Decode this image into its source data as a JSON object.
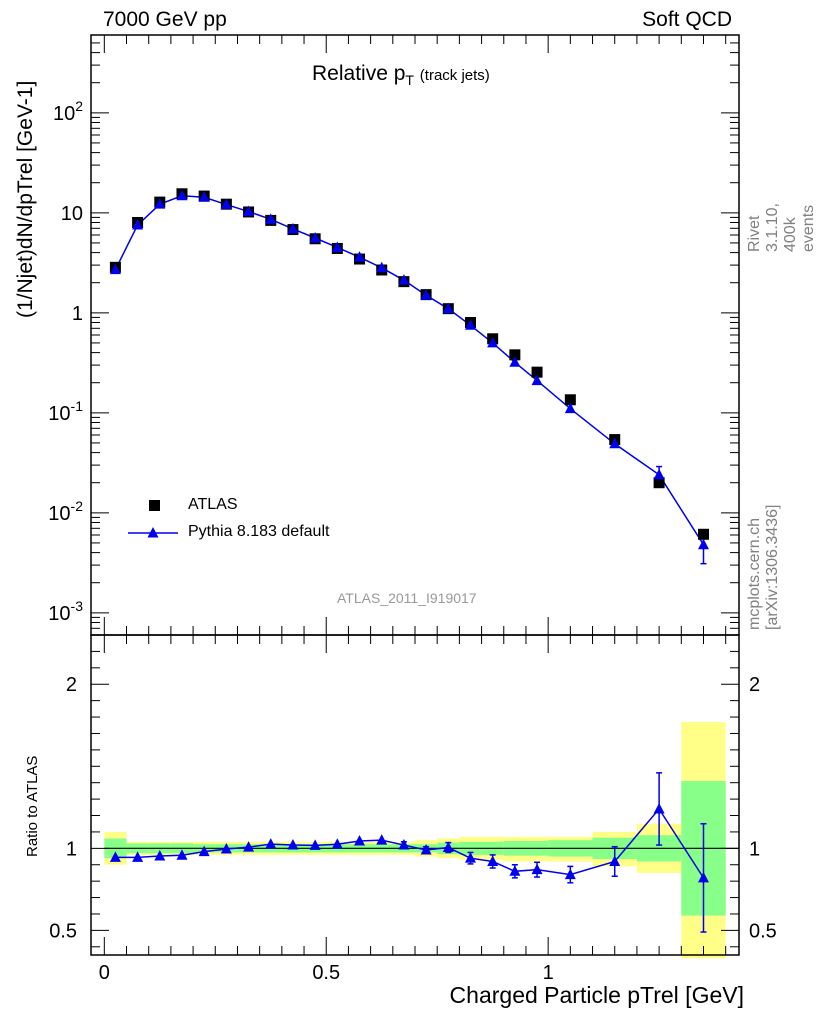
{
  "header": {
    "left": "7000 GeV pp",
    "right": "Soft QCD"
  },
  "title": {
    "main": "Relative p",
    "sub": "T",
    "note": "(track jets)"
  },
  "side_text": {
    "top": "Rivet 3.1.10,  400k events",
    "bottom": "mcplots.cern.ch [arXiv:1306.3436]"
  },
  "watermark": "ATLAS_2011_I919017",
  "legend": {
    "data_label": "ATLAS",
    "mc_label": "Pythia 8.183 default"
  },
  "colors": {
    "data": "#000000",
    "mc": "#0000ee",
    "band_inner": "#88ff88",
    "band_outer": "#ffff88"
  },
  "chart_data": [
    {
      "type": "scatter",
      "title": "Relative pT (track jets)",
      "ylabel": "(1/Njet)dN/dpTrel [GeV-1]",
      "xlabel": "Charged Particle pTrel [GeV]",
      "yscale": "log",
      "ylim": [
        0.0006,
        600
      ],
      "xlim": [
        -0.03,
        1.43
      ],
      "ytick_labels": [
        "10^-3",
        "10^-2",
        "10^-1",
        "1",
        "10",
        "10^2"
      ],
      "series": [
        {
          "name": "ATLAS",
          "x": [
            0.025,
            0.075,
            0.125,
            0.175,
            0.225,
            0.275,
            0.325,
            0.375,
            0.425,
            0.475,
            0.525,
            0.575,
            0.625,
            0.675,
            0.725,
            0.775,
            0.825,
            0.875,
            0.925,
            0.975,
            1.05,
            1.15,
            1.25,
            1.35
          ],
          "y": [
            2.85,
            8.0,
            12.8,
            15.5,
            14.7,
            12.2,
            10.2,
            8.4,
            6.8,
            5.5,
            4.4,
            3.45,
            2.68,
            2.05,
            1.52,
            1.1,
            0.8,
            0.55,
            0.38,
            0.255,
            0.135,
            0.054,
            0.02,
            0.0061
          ]
        },
        {
          "name": "Pythia 8.183 default",
          "x": [
            0.025,
            0.075,
            0.125,
            0.175,
            0.225,
            0.275,
            0.325,
            0.375,
            0.425,
            0.475,
            0.525,
            0.575,
            0.625,
            0.675,
            0.725,
            0.775,
            0.825,
            0.875,
            0.925,
            0.975,
            1.05,
            1.15,
            1.25,
            1.35
          ],
          "y": [
            2.7,
            7.55,
            12.2,
            14.8,
            14.3,
            12.1,
            10.3,
            8.6,
            6.9,
            5.6,
            4.5,
            3.6,
            2.82,
            2.12,
            1.5,
            1.1,
            0.75,
            0.5,
            0.32,
            0.21,
            0.11,
            0.049,
            0.024,
            0.0048
          ],
          "yerr_low": [
            0,
            0,
            0,
            0,
            0,
            0,
            0,
            0,
            0,
            0,
            0,
            0,
            0,
            0,
            0,
            0,
            0,
            0,
            0,
            0,
            0,
            0,
            0.003,
            0.0017
          ],
          "yerr_high": [
            0,
            0,
            0,
            0,
            0,
            0,
            0,
            0,
            0,
            0,
            0,
            0,
            0,
            0,
            0,
            0,
            0,
            0,
            0,
            0,
            0,
            0,
            0.005,
            0.0017
          ]
        }
      ]
    },
    {
      "type": "line",
      "ylabel": "Ratio to ATLAS",
      "ylim": [
        0.35,
        2.3
      ],
      "xlim": [
        -0.03,
        1.43
      ],
      "xtick_labels": [
        "0",
        "0.5",
        "1"
      ],
      "ytick_labels": [
        "0.5",
        "1",
        "2"
      ],
      "series": [
        {
          "name": "Pythia 8.183 default / ATLAS",
          "x": [
            0.025,
            0.075,
            0.125,
            0.175,
            0.225,
            0.275,
            0.325,
            0.375,
            0.425,
            0.475,
            0.525,
            0.575,
            0.625,
            0.675,
            0.725,
            0.775,
            0.825,
            0.875,
            0.925,
            0.975,
            1.05,
            1.15,
            1.25,
            1.35
          ],
          "y": [
            0.945,
            0.945,
            0.953,
            0.958,
            0.98,
            0.996,
            1.007,
            1.026,
            1.02,
            1.018,
            1.025,
            1.045,
            1.05,
            1.02,
            0.99,
            1.005,
            0.94,
            0.92,
            0.86,
            0.87,
            0.84,
            0.92,
            1.24,
            0.82
          ],
          "yerr": [
            0,
            0,
            0,
            0,
            0,
            0,
            0,
            0,
            0,
            0,
            0,
            0,
            0,
            0.02,
            0.02,
            0.03,
            0.035,
            0.04,
            0.04,
            0.045,
            0.05,
            0.09,
            0.22,
            0.33
          ]
        }
      ],
      "bands": {
        "x_edges": [
          0,
          0.05,
          0.1,
          0.15,
          0.2,
          0.25,
          0.3,
          0.35,
          0.4,
          0.45,
          0.5,
          0.55,
          0.6,
          0.65,
          0.7,
          0.75,
          0.8,
          0.85,
          0.9,
          0.95,
          1.0,
          1.1,
          1.2,
          1.3,
          1.4
        ],
        "inner_low": [
          0.94,
          0.97,
          0.97,
          0.97,
          0.975,
          0.975,
          0.975,
          0.975,
          0.975,
          0.975,
          0.975,
          0.975,
          0.975,
          0.975,
          0.975,
          0.965,
          0.96,
          0.96,
          0.955,
          0.955,
          0.95,
          0.935,
          0.92,
          0.59
        ],
        "inner_high": [
          1.06,
          1.03,
          1.03,
          1.03,
          1.025,
          1.025,
          1.025,
          1.025,
          1.025,
          1.025,
          1.025,
          1.025,
          1.025,
          1.025,
          1.025,
          1.035,
          1.04,
          1.04,
          1.045,
          1.045,
          1.05,
          1.065,
          1.08,
          1.41
        ],
        "outer_low": [
          0.9,
          0.96,
          0.96,
          0.96,
          0.96,
          0.96,
          0.96,
          0.96,
          0.96,
          0.96,
          0.96,
          0.96,
          0.96,
          0.96,
          0.95,
          0.94,
          0.93,
          0.93,
          0.92,
          0.92,
          0.92,
          0.89,
          0.85,
          0.33
        ],
        "outer_high": [
          1.1,
          1.04,
          1.04,
          1.04,
          1.04,
          1.04,
          1.04,
          1.04,
          1.04,
          1.04,
          1.04,
          1.04,
          1.04,
          1.04,
          1.05,
          1.06,
          1.07,
          1.07,
          1.07,
          1.07,
          1.07,
          1.1,
          1.15,
          1.77
        ]
      }
    }
  ]
}
